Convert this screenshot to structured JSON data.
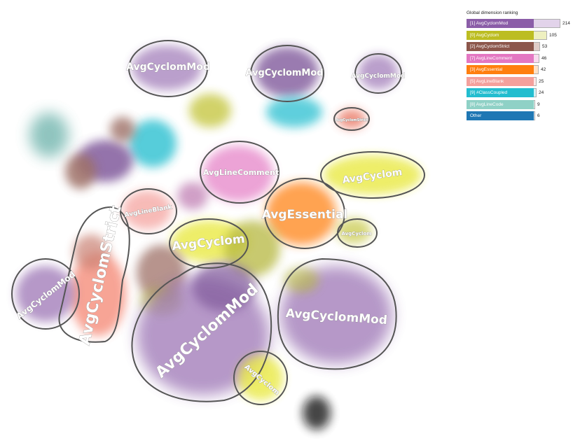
{
  "chart_data": {
    "type": "bar",
    "title": "Global dimension ranking",
    "categories": [
      "[1] AvgCyclomMod",
      "[0] AvgCyclom",
      "[2] AvgCyclomStrict",
      "[7] AvgLineComment",
      "[3] AvgEssential",
      "[5] AvgLineBlank",
      "[9] #ClassCoupled",
      "[8] AvgLineCode",
      "Other"
    ],
    "values": [
      214,
      105,
      53,
      46,
      42,
      25,
      24,
      9,
      6
    ],
    "colors": [
      "#8b5da8",
      "#bcbd22",
      "#8c564b",
      "#e377c2",
      "#ff7f0e",
      "#f4a09c",
      "#22bdcf",
      "#8fd1c6",
      "#1f77b4"
    ],
    "track_colors": [
      "#e2d3ea",
      "#eef0c0",
      "#e0cdc8",
      "#f8dbef",
      "#ffe2c7",
      "#fde7e6",
      "#cff1f5",
      "#e2f3f0",
      "#d3e3f2"
    ],
    "ylim": [
      0,
      214
    ]
  },
  "map": {
    "cluster_labels": [
      "AvgCyclomMod",
      "AvgCyclomMod",
      "AvgCyclomMod",
      "AvgLineComment",
      "AvgCyclom",
      "AvgLineBlank",
      "AvgEssential",
      "AvgCyclom",
      "AvgCyclom",
      "AvgCyclomStrict",
      "AvgCyclomMod",
      "AvgCyclomMod",
      "AvgCyclomMod",
      "AvgCyclom",
      "AvgCyclomStrict"
    ]
  }
}
